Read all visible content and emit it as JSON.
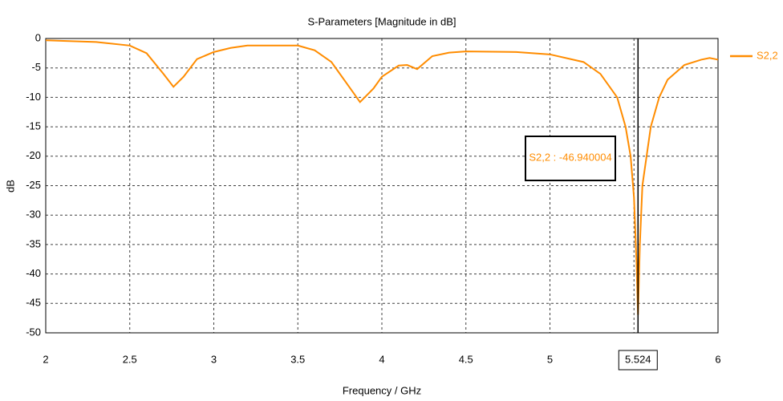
{
  "chart_data": {
    "type": "line",
    "title": "S-Parameters [Magnitude in dB]",
    "xlabel": "Frequency / GHz",
    "ylabel": "dB",
    "x": [
      2,
      2.3,
      2.5,
      2.6,
      2.7,
      2.76,
      2.82,
      2.9,
      3.0,
      3.1,
      3.2,
      3.5,
      3.6,
      3.7,
      3.8,
      3.87,
      3.95,
      4.0,
      4.1,
      4.15,
      4.21,
      4.3,
      4.4,
      4.5,
      4.8,
      5.0,
      5.2,
      5.3,
      5.4,
      5.45,
      5.48,
      5.5,
      5.515,
      5.524,
      5.535,
      5.55,
      5.6,
      5.65,
      5.7,
      5.8,
      5.9,
      5.95,
      6.0
    ],
    "series": [
      {
        "name": "S2,2",
        "color": "#ff8c00",
        "values": [
          -0.3,
          -0.6,
          -1.2,
          -2.5,
          -6,
          -8.2,
          -6.5,
          -3.5,
          -2.3,
          -1.6,
          -1.2,
          -1.2,
          -2,
          -4,
          -8,
          -10.8,
          -8.5,
          -6.5,
          -4.6,
          -4.5,
          -5.2,
          -3,
          -2.4,
          -2.2,
          -2.3,
          -2.7,
          -4,
          -6,
          -10,
          -15,
          -20,
          -27,
          -38,
          -46.94,
          -35,
          -25,
          -15,
          -10,
          -7,
          -4.5,
          -3.6,
          -3.3,
          -3.6
        ]
      }
    ],
    "xlim": [
      2,
      6
    ],
    "ylim": [
      -50,
      0
    ],
    "xticks": [
      2,
      2.5,
      3,
      3.5,
      4,
      4.5,
      5,
      5.5,
      6
    ],
    "yticks": [
      0,
      -5,
      -10,
      -15,
      -20,
      -25,
      -30,
      -35,
      -40,
      -45,
      -50
    ],
    "grid": true,
    "legend": "right",
    "marker": {
      "x": 5.524,
      "label": "S2,2 : -46.940004"
    }
  }
}
